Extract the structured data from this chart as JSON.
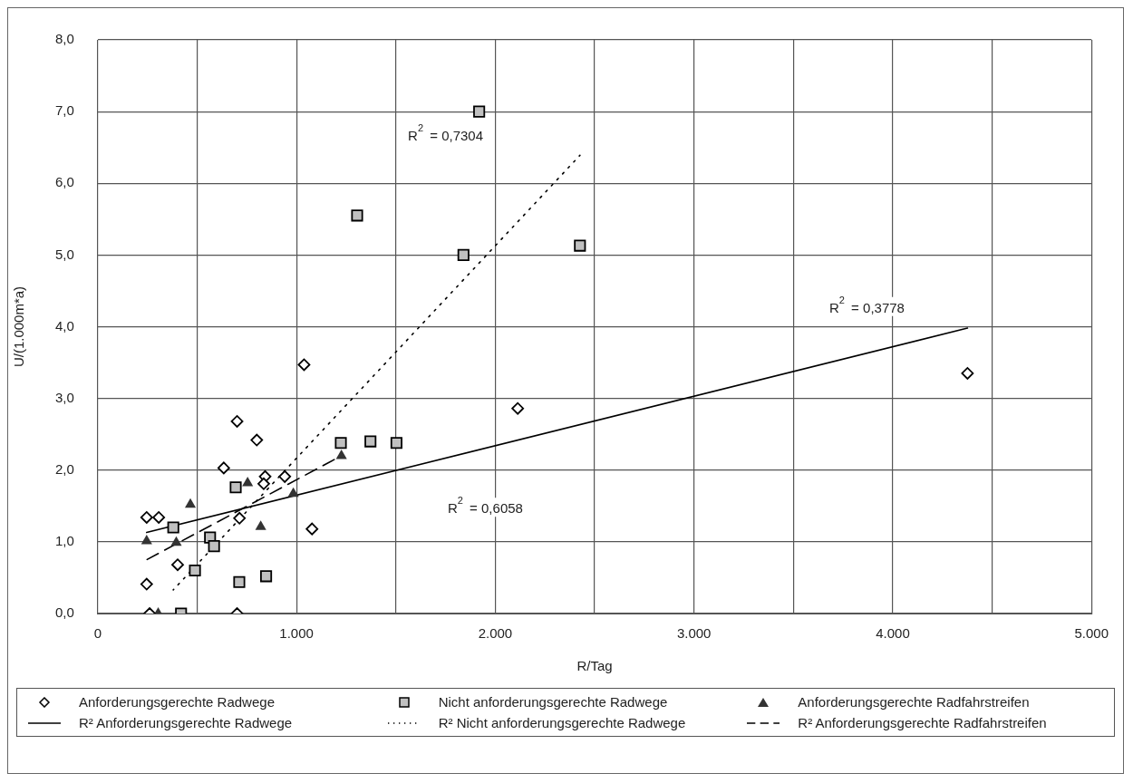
{
  "chart_data": {
    "type": "scatter",
    "xlabel": "R/Tag",
    "ylabel": "U/(1.000m*a)",
    "xlim": [
      0,
      5000
    ],
    "xticks": [
      0,
      {
        "value": 500,
        "label": null
      },
      {
        "value": 1000,
        "label": "1.000"
      },
      {
        "value": 1500,
        "label": null
      },
      {
        "value": 2000,
        "label": "2.000"
      },
      {
        "value": 2500,
        "label": null
      },
      {
        "value": 3000,
        "label": "3.000"
      },
      {
        "value": 3500,
        "label": null
      },
      {
        "value": 4000,
        "label": "4.000"
      },
      {
        "value": 4500,
        "label": null
      },
      {
        "value": 5000,
        "label": "5.000"
      }
    ],
    "ylim": [
      0,
      8
    ],
    "yticks": [
      {
        "value": 0,
        "label": "0,0"
      },
      {
        "value": 1,
        "label": "1,0"
      },
      {
        "value": 2,
        "label": "2,0"
      },
      {
        "value": 3,
        "label": "3,0"
      },
      {
        "value": 4,
        "label": "4,0"
      },
      {
        "value": 5,
        "label": "5,0"
      },
      {
        "value": 6,
        "label": "6,0"
      },
      {
        "value": 7,
        "label": "7,0"
      },
      {
        "value": 8,
        "label": "8,0"
      }
    ],
    "grid": true,
    "legend": "bottom",
    "series": [
      {
        "name": "Anforderungsgerechte Radwege",
        "type": "scatter",
        "marker": "diamond",
        "color": "#000000",
        "x": [
          701,
          800,
          634,
          842,
          835,
          941,
          246,
          307,
          713,
          1078,
          402,
          246,
          261,
          701,
          1038,
          2113,
          4376
        ],
        "values": [
          2.68,
          2.42,
          2.03,
          1.91,
          1.81,
          1.91,
          1.34,
          1.34,
          1.33,
          1.18,
          0.68,
          0.41,
          0,
          0,
          3.47,
          2.86,
          3.35
        ]
      },
      {
        "name": "Nicht anforderungsgerechte Radwege",
        "type": "scatter",
        "marker": "square",
        "color": "#c0c0c0",
        "x": [
          1223,
          1372,
          1503,
          694,
          380,
          565,
          585,
          489,
          712,
          847,
          419,
          1919,
          1305,
          1840,
          2426
        ],
        "values": [
          2.38,
          2.4,
          2.38,
          1.76,
          1.2,
          1.06,
          0.94,
          0.6,
          0.44,
          0.52,
          0,
          7.0,
          5.55,
          5.0,
          5.13
        ]
      },
      {
        "name": "Anforderungsgerechte Radfahrstreifen",
        "type": "scatter",
        "marker": "triangle",
        "color": "#333333",
        "x": [
          1226,
          754,
          984,
          466,
          820,
          246,
          395,
          304
        ],
        "values": [
          2.2,
          1.82,
          1.67,
          1.52,
          1.21,
          1.01,
          0.99,
          0
        ]
      },
      {
        "name": "R² Anforderungsgerechte Radwege",
        "type": "line",
        "marker": "none",
        "line_style": "solid",
        "color": "#000000",
        "x": [
          246,
          4376
        ],
        "values": [
          1.13,
          3.98
        ]
      },
      {
        "name": "R² Nicht anforderungsgerechte Radwege",
        "type": "line",
        "marker": "none",
        "line_style": "dotted",
        "color": "#000000",
        "x": [
          380,
          2426
        ],
        "values": [
          0.33,
          6.39
        ]
      },
      {
        "name": "R² Anforderungsgerechte Radfahrstreifen",
        "type": "line",
        "marker": "none",
        "line_style": "dashed",
        "color": "#000000",
        "x": [
          246,
          1226
        ],
        "values": [
          0.75,
          2.2
        ]
      }
    ],
    "annotations": [
      "R$^{2}$ = 0,7304",
      "R$^{2}$ = 0,3778",
      "R$^{2}$ = 0,6058"
    ]
  }
}
